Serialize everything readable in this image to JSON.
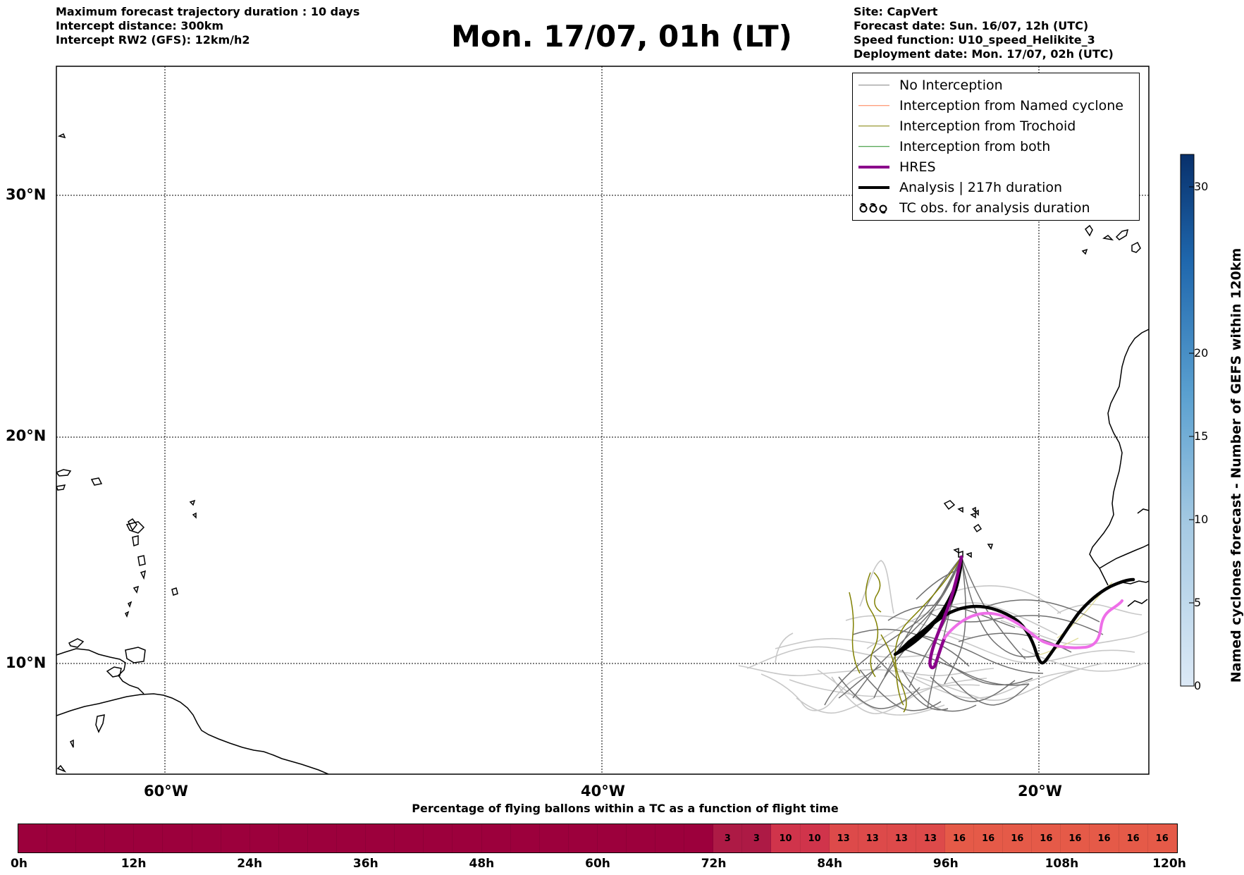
{
  "header": {
    "left_lines": [
      "Maximum forecast trajectory duration : 10 days",
      "Intercept distance: 300km",
      "Intercept RW2 (GFS):  12km/h2"
    ],
    "title": "Mon. 17/07, 01h (LT)",
    "right_lines": [
      "Site: CapVert",
      "Forecast date: Sun. 16/07, 12h (UTC)",
      "Speed function: U10_speed_Helikite_3",
      "Deployment date: Mon. 17/07, 02h (UTC)"
    ]
  },
  "map": {
    "lat_labels": [
      "30°N",
      "20°N",
      "10°N"
    ],
    "lon_labels": [
      "60°W",
      "40°W",
      "20°W"
    ]
  },
  "legend": {
    "items": [
      {
        "label": "No Interception",
        "color": "#808080",
        "icon": "thin-line"
      },
      {
        "label": "Interception from Named cyclone",
        "color": "#ff7f50",
        "icon": "thin-line"
      },
      {
        "label": "Interception from Trochoid",
        "color": "#808000",
        "icon": "thin-line"
      },
      {
        "label": "Interception from both",
        "color": "#228b22",
        "icon": "thin-line"
      },
      {
        "label": "HRES",
        "color": "#8b008b",
        "icon": "thick-line"
      },
      {
        "label": "Analysis | 217h duration",
        "color": "#000000",
        "icon": "thick-line"
      },
      {
        "label": "TC obs. for analysis duration",
        "color": "#000000",
        "icon": "cyclone-symbols"
      }
    ]
  },
  "colorbar": {
    "label": "Named cyclones forecast - Number of GEFS within 120km",
    "ticks": [
      "0",
      "5",
      "10",
      "15",
      "20",
      "30"
    ],
    "color_low": "#dce9f6",
    "color_high": "#08306b"
  },
  "timebar": {
    "title": "Percentage of flying ballons within a TC as a function of flight time",
    "tick_labels": [
      "0h",
      "12h",
      "24h",
      "36h",
      "48h",
      "60h",
      "72h",
      "84h",
      "96h",
      "108h",
      "120h"
    ],
    "cell_values": [
      "",
      "",
      "",
      "",
      "",
      "",
      "",
      "",
      "",
      "",
      "",
      "",
      "",
      "",
      "",
      "",
      "",
      "",
      "",
      "",
      "",
      "",
      "",
      "",
      "3",
      "3",
      "10",
      "10",
      "13",
      "13",
      "13",
      "13",
      "16",
      "16",
      "16",
      "16",
      "16",
      "16",
      "16",
      "16"
    ],
    "color_zero": "#9c003c",
    "color_3": "#ad1a45",
    "color_10": "#d0344b",
    "color_13": "#dd4a4a",
    "color_16": "#e55a48"
  }
}
